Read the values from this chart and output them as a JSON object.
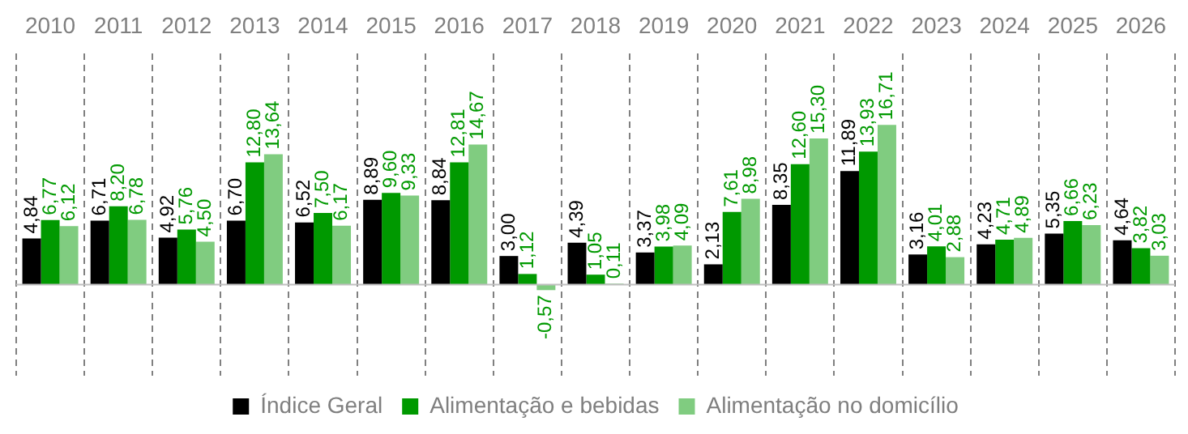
{
  "chart_data": {
    "type": "bar",
    "categories": [
      "2010",
      "2011",
      "2012",
      "2013",
      "2014",
      "2015",
      "2016",
      "2017",
      "2018",
      "2019",
      "2020",
      "2021",
      "2022",
      "2023",
      "2024",
      "2025",
      "2026"
    ],
    "series": [
      {
        "name": "Índice Geral",
        "color": "#000000",
        "values": [
          4.84,
          6.71,
          4.92,
          6.7,
          6.52,
          8.89,
          8.84,
          3.0,
          4.39,
          3.37,
          2.13,
          8.35,
          11.89,
          3.16,
          4.23,
          5.35,
          4.64
        ],
        "value_labels": [
          "4,84",
          "6,71",
          "4,92",
          "6,70",
          "6,52",
          "8,89",
          "8,84",
          "3,00",
          "4,39",
          "3,37",
          "2,13",
          "8,35",
          "11,89",
          "3,16",
          "4,23",
          "5,35",
          "4,64"
        ]
      },
      {
        "name": "Alimentação e bebidas",
        "color": "#009900",
        "values": [
          6.77,
          8.2,
          5.76,
          12.8,
          7.5,
          9.6,
          12.81,
          1.12,
          1.05,
          3.98,
          7.61,
          12.6,
          13.93,
          4.01,
          4.71,
          6.66,
          3.82
        ],
        "value_labels": [
          "6,77",
          "8,20",
          "5,76",
          "12,80",
          "7,50",
          "9,60",
          "12,81",
          "1,12",
          "1,05",
          "3,98",
          "7,61",
          "12,60",
          "13,93",
          "4,01",
          "4,71",
          "6,66",
          "3,82"
        ]
      },
      {
        "name": "Alimentação no domicílio",
        "color": "#80cc80",
        "values": [
          6.12,
          6.78,
          4.5,
          13.64,
          6.17,
          9.33,
          14.67,
          -0.57,
          0.11,
          4.09,
          8.98,
          15.3,
          16.71,
          2.88,
          4.89,
          6.23,
          3.03
        ],
        "value_labels": [
          "6,12",
          "6,78",
          "4,50",
          "13,64",
          "6,17",
          "9,33",
          "14,67",
          "-0,57",
          "0,11",
          "4,09",
          "8,98",
          "15,30",
          "16,71",
          "2,88",
          "4,89",
          "6,23",
          "3,03"
        ]
      }
    ],
    "grid": "x",
    "legend": "bottom"
  }
}
